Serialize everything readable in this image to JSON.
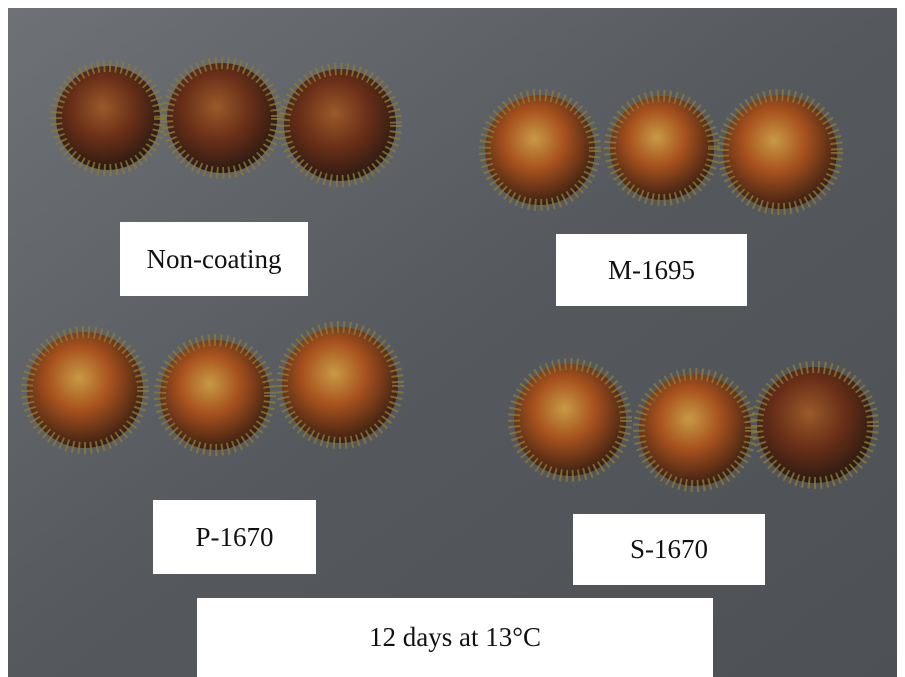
{
  "labels": {
    "top_left": "Non-coating",
    "top_right": "M-1695",
    "bottom_left": "P-1670",
    "bottom_right": "S-1670",
    "caption": "12 days at 13°C"
  }
}
